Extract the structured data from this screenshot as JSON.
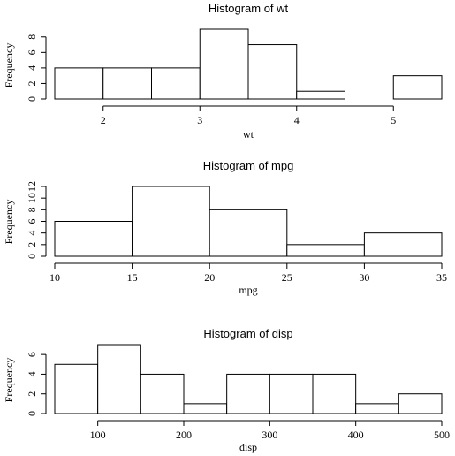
{
  "chart_data": [
    {
      "type": "bar",
      "title": "Histogram of wt",
      "xlabel": "wt",
      "ylabel": "Frequency",
      "bins": [
        [
          1.5,
          2
        ],
        [
          2,
          2.5
        ],
        [
          2.5,
          3
        ],
        [
          3,
          3.5
        ],
        [
          3.5,
          4
        ],
        [
          4,
          4.5
        ],
        [
          4.5,
          5
        ],
        [
          5,
          5.5
        ]
      ],
      "values": [
        4,
        4,
        4,
        9,
        7,
        1,
        0,
        3
      ],
      "xlim": [
        1.5,
        5.5
      ],
      "ylim": [
        0,
        9
      ],
      "xticks": [
        2,
        3,
        4,
        5
      ],
      "yticks": [
        0,
        2,
        4,
        6,
        8
      ],
      "grid": false
    },
    {
      "type": "bar",
      "title": "Histogram of mpg",
      "xlabel": "mpg",
      "ylabel": "Frequency",
      "bins": [
        [
          10,
          15
        ],
        [
          15,
          20
        ],
        [
          20,
          25
        ],
        [
          25,
          30
        ],
        [
          30,
          35
        ]
      ],
      "values": [
        6,
        12,
        8,
        2,
        4
      ],
      "xlim": [
        10,
        35
      ],
      "ylim": [
        0,
        12
      ],
      "xticks": [
        10,
        15,
        20,
        25,
        30,
        35
      ],
      "yticks": [
        0,
        2,
        4,
        6,
        8,
        10,
        12
      ],
      "grid": false
    },
    {
      "type": "bar",
      "title": "Histogram of disp",
      "xlabel": "disp",
      "ylabel": "Frequency",
      "bins": [
        [
          50,
          100
        ],
        [
          100,
          150
        ],
        [
          150,
          200
        ],
        [
          200,
          250
        ],
        [
          250,
          300
        ],
        [
          300,
          350
        ],
        [
          350,
          400
        ],
        [
          400,
          450
        ],
        [
          450,
          500
        ]
      ],
      "values": [
        5,
        7,
        4,
        1,
        4,
        4,
        4,
        1,
        2
      ],
      "xlim": [
        50,
        500
      ],
      "ylim": [
        0,
        7
      ],
      "xticks": [
        100,
        200,
        300,
        400,
        500
      ],
      "yticks": [
        0,
        2,
        4,
        6
      ],
      "grid": false
    }
  ]
}
